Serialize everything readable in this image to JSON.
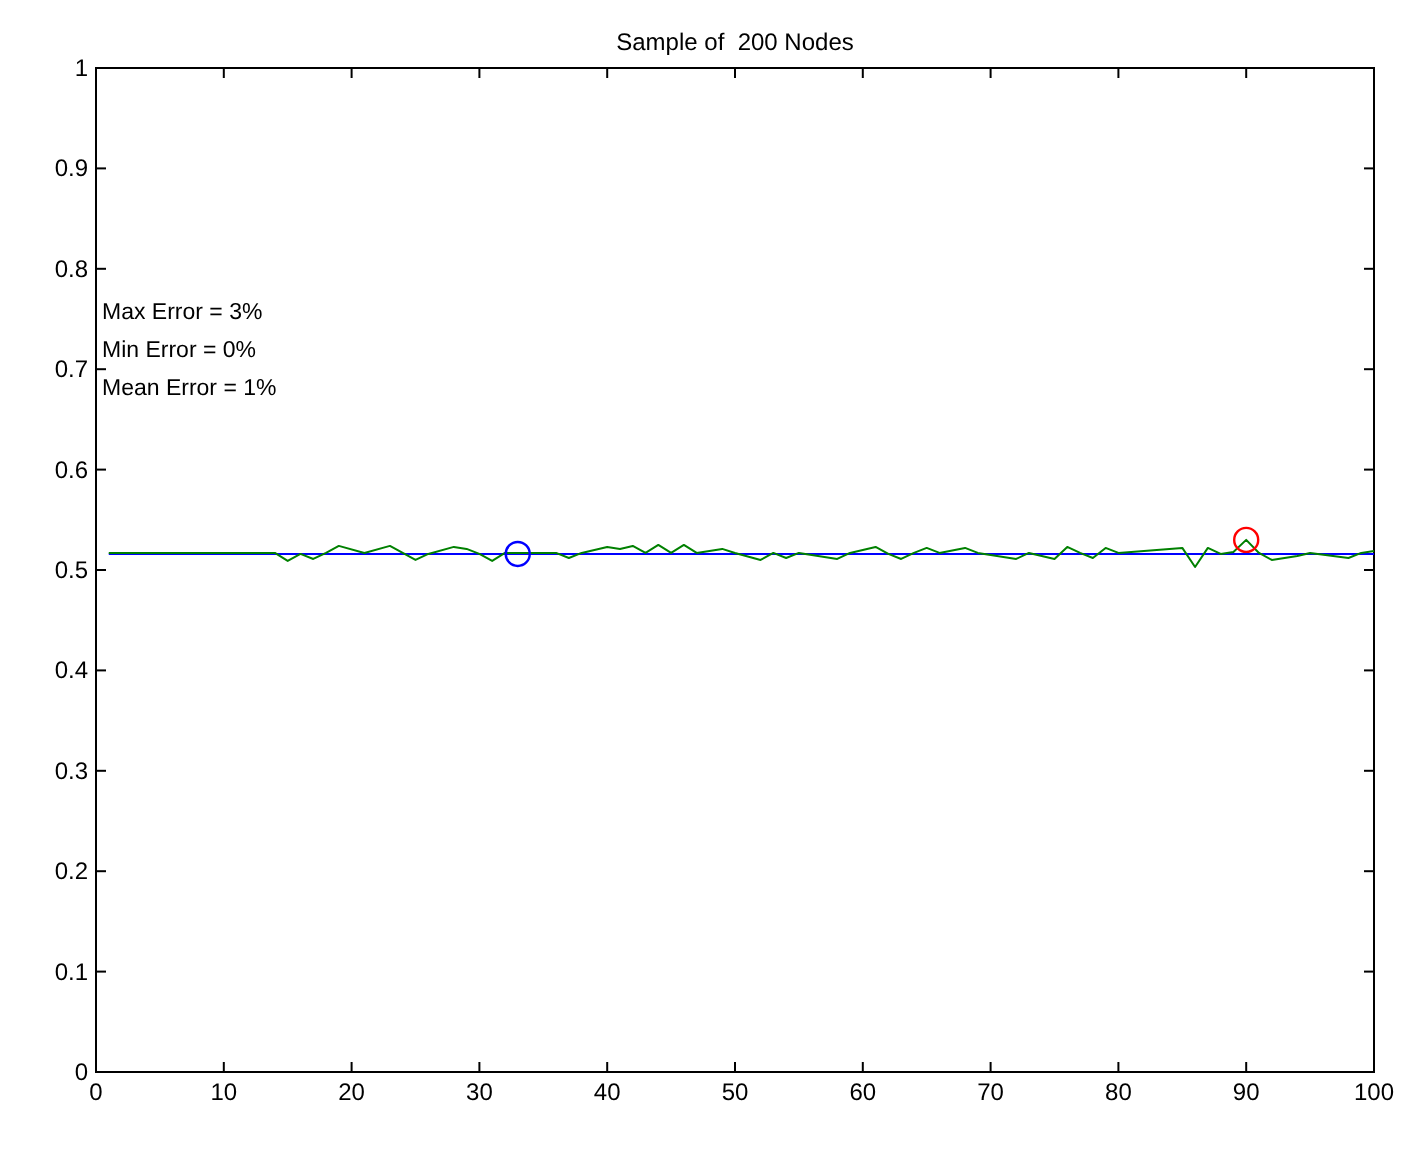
{
  "chart_data": {
    "type": "line",
    "title": "Sample of  200 Nodes",
    "xlim": [
      0,
      100
    ],
    "xticks": [
      0,
      10,
      20,
      30,
      40,
      50,
      60,
      70,
      80,
      90,
      100
    ],
    "ylim": [
      0,
      1
    ],
    "yticks": [
      0,
      0.1,
      0.2,
      0.3,
      0.4,
      0.5,
      0.6,
      0.7,
      0.8,
      0.9,
      1
    ],
    "grid": false,
    "annotations": [
      "Max Error = 3%",
      "Min Error = 0%",
      "Mean Error = 1%"
    ],
    "series": [
      {
        "type": "line",
        "color": "#0000ff",
        "marker": "none",
        "x": [
          1,
          100
        ],
        "values": [
          0.516,
          0.516
        ]
      },
      {
        "type": "line",
        "color": "#008000",
        "marker": "none",
        "x": [
          1,
          14,
          15,
          16,
          17,
          18,
          19,
          21,
          23,
          25,
          26,
          28,
          29,
          30,
          31,
          32,
          36,
          37,
          38,
          40,
          41,
          42,
          43,
          44,
          45,
          46,
          47,
          49,
          50,
          52,
          53,
          54,
          55,
          58,
          59,
          61,
          62,
          63,
          64,
          65,
          66,
          68,
          69,
          72,
          73,
          75,
          76,
          77,
          78,
          79,
          80,
          85,
          86,
          87,
          88,
          89,
          90,
          91,
          92,
          94,
          95,
          98,
          99,
          100
        ],
        "values": [
          0.517,
          0.517,
          0.509,
          0.516,
          0.511,
          0.517,
          0.524,
          0.517,
          0.524,
          0.51,
          0.516,
          0.523,
          0.521,
          0.516,
          0.509,
          0.517,
          0.517,
          0.512,
          0.517,
          0.523,
          0.521,
          0.524,
          0.517,
          0.525,
          0.517,
          0.525,
          0.517,
          0.521,
          0.517,
          0.51,
          0.517,
          0.512,
          0.517,
          0.511,
          0.517,
          0.523,
          0.516,
          0.511,
          0.517,
          0.522,
          0.517,
          0.522,
          0.517,
          0.511,
          0.517,
          0.511,
          0.523,
          0.517,
          0.512,
          0.522,
          0.517,
          0.522,
          0.503,
          0.522,
          0.516,
          0.518,
          0.53,
          0.517,
          0.51,
          0.514,
          0.517,
          0.512,
          0.517,
          0.519
        ]
      },
      {
        "type": "scatter",
        "color": "#0000ff",
        "marker": "circle",
        "x": [
          33
        ],
        "values": [
          0.516
        ]
      },
      {
        "type": "scatter",
        "color": "#ff0000",
        "marker": "circle",
        "x": [
          90
        ],
        "values": [
          0.53
        ]
      }
    ]
  }
}
